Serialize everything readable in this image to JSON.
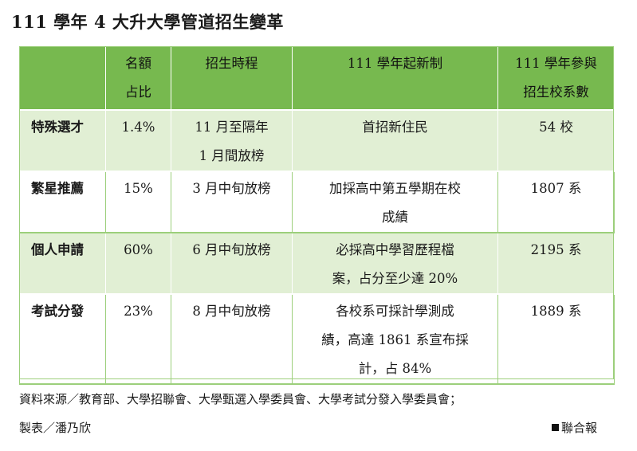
{
  "title": "111 學年 4 大升大學管道招生變革",
  "table": {
    "headers": [
      "",
      "名額\n占比",
      "招生時程",
      "111 學年起新制",
      "111 學年參與\n招生校系數"
    ],
    "rows": [
      {
        "channel": "特殊選才",
        "share": "1.4%",
        "schedule": "11 月至隔年\n1 月間放榜",
        "new_policy": "首招新住民",
        "participants": "54 校"
      },
      {
        "channel": "繁星推薦",
        "share": "15%",
        "schedule": "3 月中旬放榜",
        "new_policy": "加採高中第五學期在校\n成績",
        "participants": "1807 系"
      },
      {
        "channel": "個人申請",
        "share": "60%",
        "schedule": "6 月中旬放榜",
        "new_policy": "必採高中學習歷程檔\n案，占分至少達 20%",
        "participants": "2195 系"
      },
      {
        "channel": "考試分發",
        "share": "23%",
        "schedule": "8 月中旬放榜",
        "new_policy": "各校系可採計學測成\n績，高達 1861 系宣布採\n計，占 84%",
        "participants": "1889 系"
      }
    ]
  },
  "footer": {
    "source": "資料來源／教育部、大學招聯會、大學甄選入學委員會、大學考試分發入學委員會；",
    "maker": "製表／潘乃欣",
    "credit": "聯合報"
  },
  "colors": {
    "header_green": "#77b94f",
    "row_light_green": "#e1efd4",
    "border_green": "#9ccf7b"
  }
}
